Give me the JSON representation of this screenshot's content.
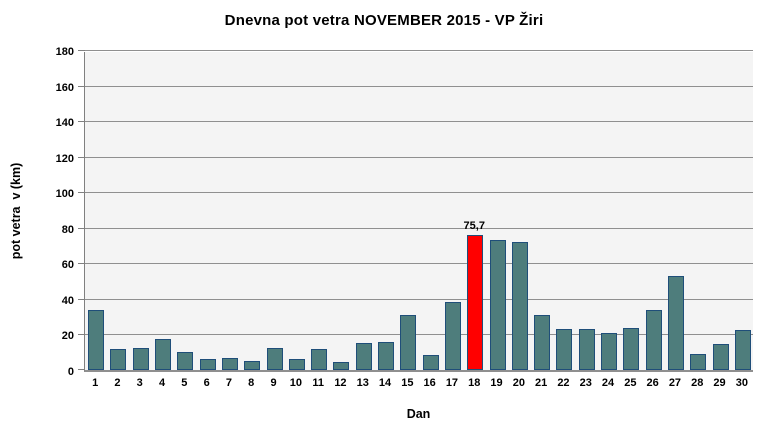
{
  "chart_data": {
    "type": "bar",
    "title": "Dnevna pot vetra NOVEMBER 2015 - VP Žiri",
    "xlabel": "Dan",
    "ylabel": "pot vetra  v (km)",
    "categories": [
      "1",
      "2",
      "3",
      "4",
      "5",
      "6",
      "7",
      "8",
      "9",
      "10",
      "11",
      "12",
      "13",
      "14",
      "15",
      "16",
      "17",
      "18",
      "19",
      "20",
      "21",
      "22",
      "23",
      "24",
      "25",
      "26",
      "27",
      "28",
      "29",
      "30"
    ],
    "values": [
      34,
      12,
      12.5,
      17.5,
      10,
      6,
      7,
      5,
      12.5,
      6,
      12,
      4.5,
      15,
      15.5,
      31,
      8.5,
      38,
      75.7,
      73,
      72,
      31,
      23,
      23,
      21,
      23.5,
      34,
      53,
      9,
      14.5,
      22.5
    ],
    "ylim": [
      0,
      180
    ],
    "ytick_step": 20,
    "grid": "horizontal-only",
    "legend": "none",
    "highlight_index": 17,
    "highlight_label": "75,7",
    "colors": {
      "bar_fill": "#4e7d7c",
      "bar_border": "#1f4e79",
      "highlight_fill": "#ff0000",
      "plot_background": "#f4f4f4",
      "gridline": "#8f8f8f",
      "axis_line": "#808080",
      "text": "#000000",
      "page_background": "#ffffff"
    }
  }
}
